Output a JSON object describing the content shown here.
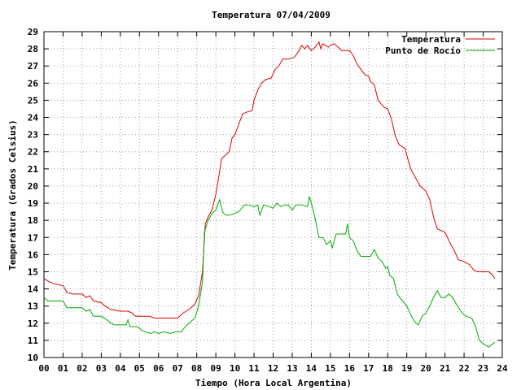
{
  "chart_data": {
    "type": "line",
    "title": "Temperatura 07/04/2009",
    "xlabel": "Tiempo (Hora Local Argentina)",
    "ylabel": "Temperatura (Grados Celsius)",
    "xlim": [
      0,
      24
    ],
    "ylim": [
      10,
      29
    ],
    "x_ticks": [
      "00",
      "01",
      "02",
      "03",
      "04",
      "05",
      "06",
      "07",
      "08",
      "09",
      "10",
      "11",
      "12",
      "13",
      "14",
      "15",
      "16",
      "17",
      "18",
      "19",
      "20",
      "21",
      "22",
      "23",
      "24"
    ],
    "y_ticks": [
      "10",
      "11",
      "12",
      "13",
      "14",
      "15",
      "16",
      "17",
      "18",
      "19",
      "20",
      "21",
      "22",
      "23",
      "24",
      "25",
      "26",
      "27",
      "28",
      "29"
    ],
    "grid": true,
    "legend_position": "top-right",
    "series": [
      {
        "name": "Temperatura",
        "color": "#dd0000",
        "points": [
          [
            0.0,
            14.6
          ],
          [
            0.3,
            14.4
          ],
          [
            0.5,
            14.3
          ],
          [
            1.0,
            14.2
          ],
          [
            1.2,
            13.8
          ],
          [
            1.5,
            13.7
          ],
          [
            2.0,
            13.7
          ],
          [
            2.2,
            13.5
          ],
          [
            2.4,
            13.6
          ],
          [
            2.6,
            13.3
          ],
          [
            3.0,
            13.2
          ],
          [
            3.2,
            13.0
          ],
          [
            3.5,
            12.8
          ],
          [
            4.0,
            12.7
          ],
          [
            4.4,
            12.7
          ],
          [
            4.6,
            12.6
          ],
          [
            4.8,
            12.4
          ],
          [
            5.0,
            12.4
          ],
          [
            5.5,
            12.4
          ],
          [
            5.8,
            12.3
          ],
          [
            6.0,
            12.3
          ],
          [
            6.5,
            12.3
          ],
          [
            7.0,
            12.3
          ],
          [
            7.3,
            12.6
          ],
          [
            7.6,
            12.8
          ],
          [
            7.9,
            13.1
          ],
          [
            8.1,
            13.6
          ],
          [
            8.3,
            15.0
          ],
          [
            8.45,
            17.8
          ],
          [
            8.6,
            18.2
          ],
          [
            8.8,
            18.6
          ],
          [
            9.0,
            19.5
          ],
          [
            9.15,
            20.5
          ],
          [
            9.3,
            21.6
          ],
          [
            9.5,
            21.8
          ],
          [
            9.7,
            22.0
          ],
          [
            9.85,
            22.8
          ],
          [
            10.0,
            23.0
          ],
          [
            10.2,
            23.6
          ],
          [
            10.4,
            24.2
          ],
          [
            10.6,
            24.3
          ],
          [
            10.9,
            24.4
          ],
          [
            11.0,
            25.0
          ],
          [
            11.2,
            25.6
          ],
          [
            11.4,
            26.0
          ],
          [
            11.6,
            26.2
          ],
          [
            11.9,
            26.3
          ],
          [
            12.1,
            26.8
          ],
          [
            12.3,
            27.0
          ],
          [
            12.5,
            27.4
          ],
          [
            12.8,
            27.4
          ],
          [
            13.1,
            27.5
          ],
          [
            13.3,
            27.8
          ],
          [
            13.5,
            28.2
          ],
          [
            13.65,
            28.0
          ],
          [
            13.8,
            28.2
          ],
          [
            14.0,
            27.9
          ],
          [
            14.2,
            28.1
          ],
          [
            14.4,
            28.4
          ],
          [
            14.5,
            28.0
          ],
          [
            14.6,
            28.3
          ],
          [
            14.9,
            28.1
          ],
          [
            15.0,
            28.2
          ],
          [
            15.2,
            28.3
          ],
          [
            15.4,
            28.1
          ],
          [
            15.6,
            27.9
          ],
          [
            16.0,
            27.9
          ],
          [
            16.2,
            27.6
          ],
          [
            16.4,
            27.1
          ],
          [
            16.6,
            26.8
          ],
          [
            16.8,
            26.5
          ],
          [
            17.0,
            26.4
          ],
          [
            17.1,
            26.1
          ],
          [
            17.3,
            25.9
          ],
          [
            17.5,
            25.0
          ],
          [
            17.8,
            24.6
          ],
          [
            18.0,
            24.5
          ],
          [
            18.2,
            23.9
          ],
          [
            18.4,
            22.9
          ],
          [
            18.6,
            22.4
          ],
          [
            18.9,
            22.2
          ],
          [
            19.0,
            21.8
          ],
          [
            19.2,
            21.0
          ],
          [
            19.5,
            20.4
          ],
          [
            19.7,
            20.0
          ],
          [
            20.0,
            19.7
          ],
          [
            20.2,
            19.2
          ],
          [
            20.4,
            18.2
          ],
          [
            20.6,
            17.5
          ],
          [
            20.8,
            17.4
          ],
          [
            21.0,
            17.3
          ],
          [
            21.3,
            16.6
          ],
          [
            21.5,
            16.2
          ],
          [
            21.7,
            15.7
          ],
          [
            22.0,
            15.6
          ],
          [
            22.3,
            15.4
          ],
          [
            22.5,
            15.1
          ],
          [
            22.7,
            15.0
          ],
          [
            23.0,
            15.0
          ],
          [
            23.3,
            15.0
          ],
          [
            23.5,
            14.8
          ],
          [
            23.6,
            14.6
          ]
        ]
      },
      {
        "name": "Punto de Rocío",
        "color": "#00aa00",
        "points": [
          [
            0.0,
            13.5
          ],
          [
            0.2,
            13.3
          ],
          [
            0.5,
            13.3
          ],
          [
            1.0,
            13.3
          ],
          [
            1.2,
            12.9
          ],
          [
            1.5,
            12.9
          ],
          [
            1.8,
            12.9
          ],
          [
            2.0,
            12.9
          ],
          [
            2.2,
            12.7
          ],
          [
            2.4,
            12.8
          ],
          [
            2.6,
            12.4
          ],
          [
            3.0,
            12.4
          ],
          [
            3.3,
            12.2
          ],
          [
            3.5,
            12.0
          ],
          [
            3.7,
            11.9
          ],
          [
            4.0,
            11.9
          ],
          [
            4.3,
            11.9
          ],
          [
            4.4,
            12.2
          ],
          [
            4.5,
            11.8
          ],
          [
            4.7,
            11.8
          ],
          [
            4.9,
            11.8
          ],
          [
            5.1,
            11.6
          ],
          [
            5.3,
            11.5
          ],
          [
            5.6,
            11.4
          ],
          [
            5.8,
            11.5
          ],
          [
            6.0,
            11.4
          ],
          [
            6.3,
            11.5
          ],
          [
            6.6,
            11.4
          ],
          [
            6.9,
            11.5
          ],
          [
            7.2,
            11.5
          ],
          [
            7.4,
            11.8
          ],
          [
            7.7,
            12.1
          ],
          [
            7.9,
            12.3
          ],
          [
            8.1,
            13.0
          ],
          [
            8.3,
            14.4
          ],
          [
            8.4,
            17.3
          ],
          [
            8.6,
            18.0
          ],
          [
            8.8,
            18.4
          ],
          [
            9.0,
            18.6
          ],
          [
            9.2,
            19.2
          ],
          [
            9.35,
            18.5
          ],
          [
            9.5,
            18.3
          ],
          [
            9.7,
            18.3
          ],
          [
            10.0,
            18.4
          ],
          [
            10.2,
            18.5
          ],
          [
            10.5,
            18.9
          ],
          [
            10.7,
            18.9
          ],
          [
            11.0,
            18.8
          ],
          [
            11.2,
            18.9
          ],
          [
            11.3,
            18.3
          ],
          [
            11.5,
            18.9
          ],
          [
            11.8,
            18.8
          ],
          [
            12.0,
            18.7
          ],
          [
            12.2,
            19.0
          ],
          [
            12.4,
            18.8
          ],
          [
            12.6,
            18.9
          ],
          [
            12.8,
            18.9
          ],
          [
            13.0,
            18.6
          ],
          [
            13.2,
            18.9
          ],
          [
            13.5,
            18.9
          ],
          [
            13.8,
            18.8
          ],
          [
            13.9,
            19.4
          ],
          [
            14.05,
            18.8
          ],
          [
            14.2,
            18.1
          ],
          [
            14.4,
            17.0
          ],
          [
            14.6,
            17.0
          ],
          [
            14.8,
            16.6
          ],
          [
            15.0,
            16.8
          ],
          [
            15.1,
            16.4
          ],
          [
            15.3,
            17.2
          ],
          [
            15.5,
            17.2
          ],
          [
            15.8,
            17.2
          ],
          [
            15.9,
            17.8
          ],
          [
            16.0,
            17.0
          ],
          [
            16.2,
            16.8
          ],
          [
            16.4,
            16.2
          ],
          [
            16.6,
            15.9
          ],
          [
            16.9,
            15.9
          ],
          [
            17.1,
            15.9
          ],
          [
            17.3,
            16.3
          ],
          [
            17.5,
            15.8
          ],
          [
            17.7,
            15.6
          ],
          [
            17.9,
            15.2
          ],
          [
            18.0,
            15.3
          ],
          [
            18.1,
            14.8
          ],
          [
            18.3,
            14.6
          ],
          [
            18.5,
            13.7
          ],
          [
            18.7,
            13.4
          ],
          [
            19.0,
            13.0
          ],
          [
            19.2,
            12.5
          ],
          [
            19.4,
            12.1
          ],
          [
            19.6,
            11.9
          ],
          [
            19.8,
            12.4
          ],
          [
            20.0,
            12.6
          ],
          [
            20.2,
            13.0
          ],
          [
            20.4,
            13.5
          ],
          [
            20.6,
            13.9
          ],
          [
            20.8,
            13.5
          ],
          [
            21.0,
            13.5
          ],
          [
            21.2,
            13.7
          ],
          [
            21.4,
            13.5
          ],
          [
            21.6,
            13.1
          ],
          [
            21.9,
            12.6
          ],
          [
            22.1,
            12.4
          ],
          [
            22.4,
            12.3
          ],
          [
            22.6,
            11.8
          ],
          [
            22.8,
            11.0
          ],
          [
            23.0,
            10.8
          ],
          [
            23.3,
            10.6
          ],
          [
            23.5,
            10.8
          ],
          [
            23.6,
            10.9
          ]
        ]
      }
    ]
  }
}
